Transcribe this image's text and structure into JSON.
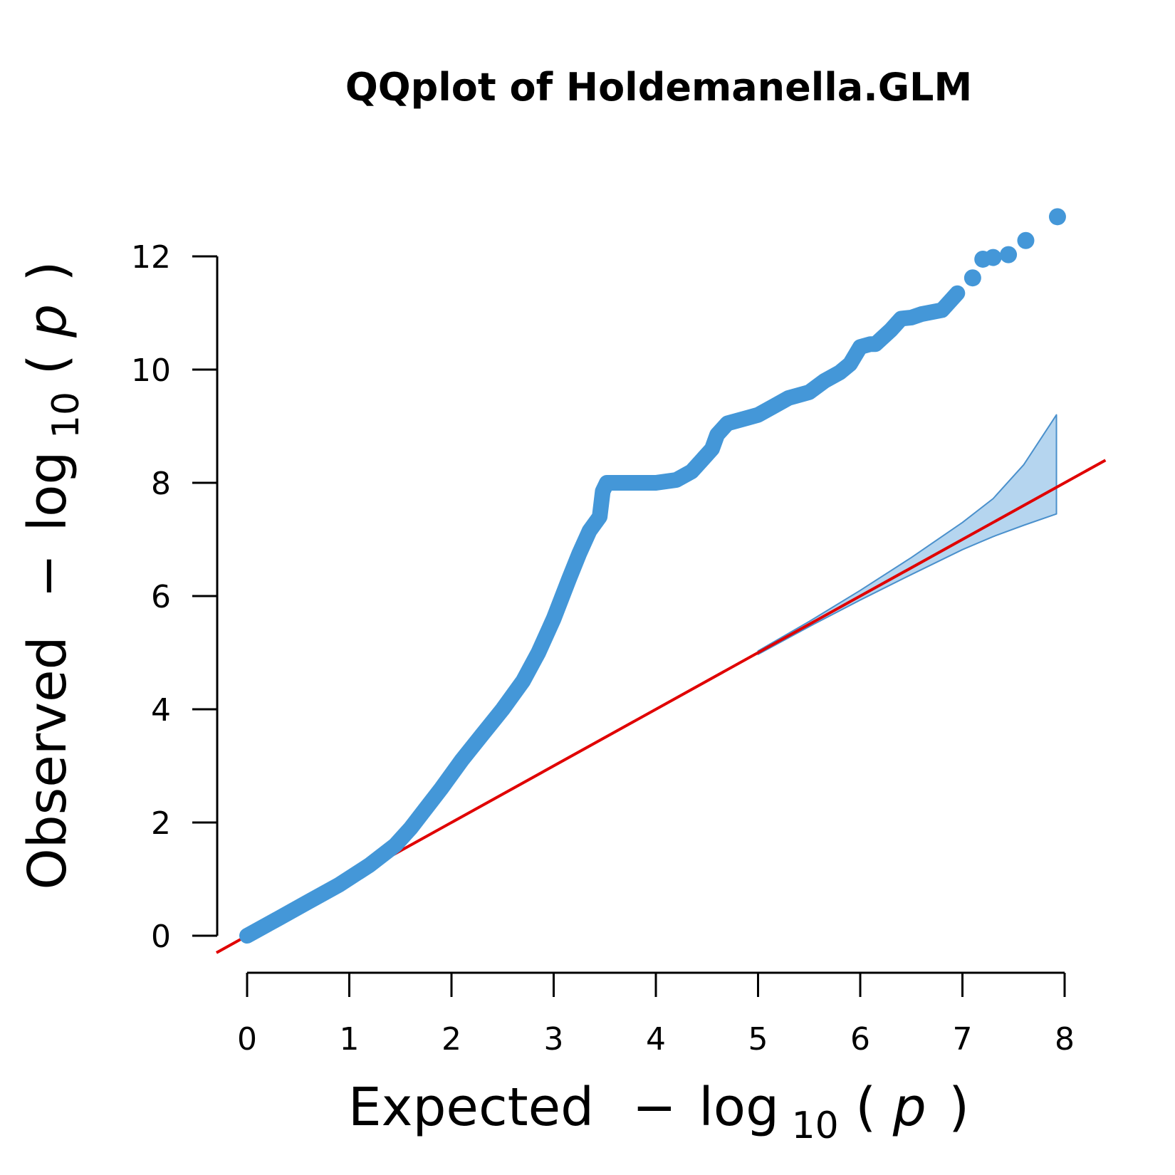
{
  "chart_data": {
    "type": "scatter",
    "title": "QQplot of Holdemanella.GLM",
    "xlabel": {
      "prefix": "Expected",
      "minus": "−",
      "log": "log",
      "base": "10",
      "open": "(",
      "var": "p",
      "close": ")"
    },
    "ylabel": {
      "prefix": "Observed",
      "minus": "−",
      "log": "log",
      "base": "10",
      "open": "(",
      "var": "p",
      "close": ")"
    },
    "xlim": [
      0,
      8
    ],
    "ylim": [
      0,
      12
    ],
    "xticks": [
      "0",
      "1",
      "2",
      "3",
      "4",
      "5",
      "6",
      "7",
      "8"
    ],
    "yticks": [
      "0",
      "2",
      "4",
      "6",
      "8",
      "10",
      "12"
    ],
    "grid": false,
    "legend": "none",
    "colors": {
      "points": "#4497d8",
      "band_fill": "#b5d5ef",
      "band_edge": "#4a90cc",
      "reference_line": "#e00000",
      "axes": "#000000"
    },
    "reference_line": {
      "slope": 1,
      "intercept": 0
    },
    "confidence_band": {
      "x": [
        0,
        1,
        2,
        3,
        4,
        5,
        5.5,
        6,
        6.5,
        7,
        7.3,
        7.6,
        7.92
      ],
      "upper": [
        0,
        1,
        2,
        3,
        4,
        5.03,
        5.55,
        6.1,
        6.68,
        7.3,
        7.72,
        8.32,
        9.2
      ],
      "lower": [
        0,
        1,
        2,
        3,
        4,
        4.97,
        5.46,
        5.93,
        6.38,
        6.82,
        7.05,
        7.25,
        7.45
      ]
    },
    "observed_curve": {
      "x": [
        0,
        0.3,
        0.6,
        0.9,
        1.2,
        1.45,
        1.6,
        1.75,
        1.9,
        2.1,
        2.3,
        2.5,
        2.7,
        2.85,
        3.0,
        3.15,
        3.25,
        3.35,
        3.45,
        3.48,
        3.52,
        3.7,
        4.0,
        4.2,
        4.35,
        4.45,
        4.55,
        4.6,
        4.7,
        4.9,
        5.0,
        5.15,
        5.3,
        5.5,
        5.65,
        5.8,
        5.9,
        6.0,
        6.1,
        6.15,
        6.3,
        6.4,
        6.5,
        6.6,
        6.8,
        6.95
      ],
      "y": [
        0,
        0.3,
        0.6,
        0.9,
        1.25,
        1.6,
        1.9,
        2.25,
        2.6,
        3.1,
        3.55,
        4.0,
        4.5,
        5.0,
        5.6,
        6.3,
        6.75,
        7.15,
        7.4,
        7.85,
        8.0,
        8.0,
        8.0,
        8.05,
        8.2,
        8.4,
        8.6,
        8.85,
        9.05,
        9.15,
        9.2,
        9.35,
        9.5,
        9.6,
        9.8,
        9.95,
        10.1,
        10.4,
        10.45,
        10.45,
        10.7,
        10.9,
        10.92,
        10.98,
        11.05,
        11.35
      ]
    },
    "top_points": {
      "x": [
        7.1,
        7.2,
        7.3,
        7.45,
        7.62,
        7.93
      ],
      "y": [
        11.62,
        11.95,
        11.98,
        12.03,
        12.28,
        12.7
      ]
    }
  }
}
